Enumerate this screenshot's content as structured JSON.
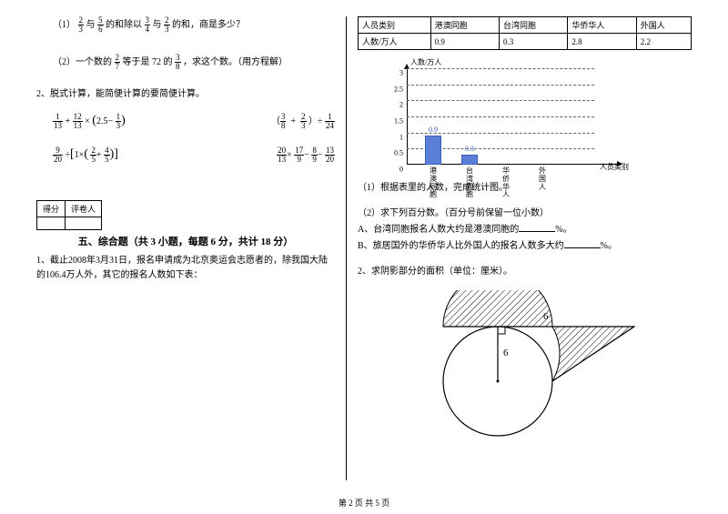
{
  "footer": "第 2 页  共 5 页",
  "left": {
    "q1_1_prefix": "（1）",
    "q1_1_a_n": "2",
    "q1_1_a_d": "3",
    "q1_1_txt1": "与",
    "q1_1_b_n": "5",
    "q1_1_b_d": "6",
    "q1_1_txt2": "的和除以",
    "q1_1_c_n": "3",
    "q1_1_c_d": "4",
    "q1_1_txt3": "与",
    "q1_1_d_n": "2",
    "q1_1_d_d": "3",
    "q1_1_txt4": "的和，商是多少？",
    "q1_2_prefix": "（2）一个数的",
    "q1_2_a_n": "2",
    "q1_2_a_d": "7",
    "q1_2_txt1": "等于是 72 的",
    "q1_2_b_n": "3",
    "q1_2_b_d": "8",
    "q1_2_txt2": "，求这个数。（用方程解）",
    "q2_title": "2、脱式计算，能简便计算的要简便计算。",
    "eq1_a_n": "1",
    "eq1_a_d": "13",
    "eq1_plus": "+",
    "eq1_b_n": "12",
    "eq1_b_d": "13",
    "eq1_times": "×",
    "eq1_c": "2.5",
    "eq1_minus": "−",
    "eq1_d_n": "1",
    "eq1_d_d": "3",
    "eq2_a_n": "3",
    "eq2_a_d": "8",
    "eq2_b_n": "2",
    "eq2_b_d": "3",
    "eq2_c_n": "1",
    "eq2_c_d": "24",
    "eq2_div": "÷",
    "eq3_a_n": "9",
    "eq3_a_d": "20",
    "eq3_b": "1",
    "eq3_c_n": "2",
    "eq3_c_d": "5",
    "eq3_d_n": "4",
    "eq3_d_d": "5",
    "eq4_a_n": "20",
    "eq4_a_d": "13",
    "eq4_b_n": "17",
    "eq4_b_d": "9",
    "eq4_c_n": "8",
    "eq4_c_d": "9",
    "eq4_d_n": "13",
    "eq4_d_d": "20",
    "score_h1": "得分",
    "score_h2": "评卷人",
    "sec5_title": "五、综合题（共 3 小题，每题 6 分，共计 18 分）",
    "sec5_q1": "1、截止2008年3月31日，报名申请成为北京奥运会志愿者的，除我国大陆的106.4万人外，其它的报名人数如下表："
  },
  "right": {
    "table": {
      "row1": [
        "人员类别",
        "港澳同胞",
        "台湾同胞",
        "华侨华人",
        "外国人"
      ],
      "row2": [
        "人数/万人",
        "0.9",
        "0.3",
        "2.8",
        "2.2"
      ]
    },
    "chart": {
      "type": "bar",
      "y_title": "人数/万人",
      "x_title": "人员类别",
      "ylim": [
        0,
        3
      ],
      "ytick_step": 0.5,
      "yticks": [
        "0",
        "0.5",
        "1",
        "1.5",
        "2",
        "2.5",
        "3"
      ],
      "categories": [
        "港澳同胞",
        "台湾同胞",
        "华侨华人",
        "外国人"
      ],
      "values": [
        0.9,
        0.3,
        null,
        null
      ],
      "value_labels": [
        "0.9",
        "0.3",
        "",
        ""
      ],
      "bar_color": "#5b7fd6",
      "grid_color": "#666666",
      "background_color": "#ffffff"
    },
    "sub1": "（1）根据表里的人数，完成统计图。",
    "sub2": "（2）求下列百分数。（百分号前保留一位小数）",
    "subA_pre": "A、台湾同胞报名人数大约是港澳同胞的",
    "subA_suf": "%。",
    "subB_pre": "B、旅居国外的华侨华人比外国人的报名人数多大约",
    "subB_suf": "%。",
    "q2": "2、求阴影部分的面积（单位：厘米）。",
    "geo": {
      "top_label": "6",
      "radius_label": "6"
    }
  }
}
